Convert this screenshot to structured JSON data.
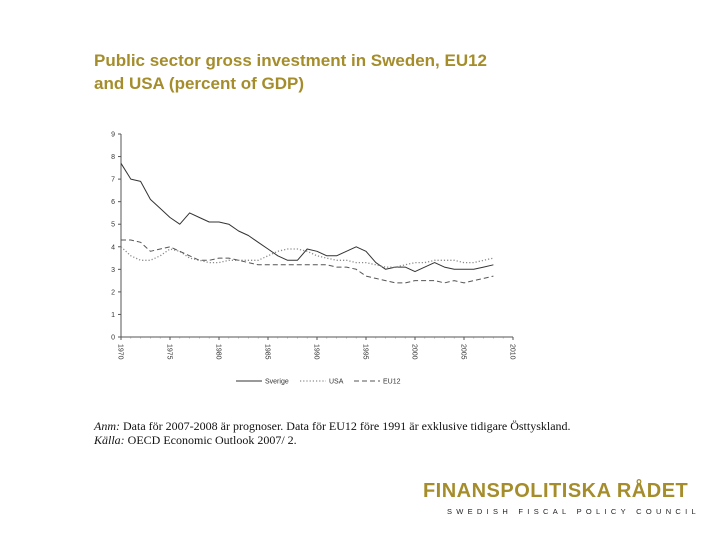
{
  "title": {
    "line1": "Public sector gross investment in Sweden, EU12",
    "line2": "and USA (percent of GDP)"
  },
  "chart_data": {
    "type": "line",
    "title": "Public sector gross investment in Sweden, EU12 and USA (percent of GDP)",
    "xlabel": "",
    "ylabel": "",
    "xlim": [
      1970,
      2010
    ],
    "ylim": [
      0,
      9
    ],
    "x_ticks": [
      "1970",
      "1975",
      "1980",
      "1985",
      "1990",
      "1995",
      "2000",
      "2005",
      "2010"
    ],
    "y_ticks": [
      "0",
      "1",
      "2",
      "3",
      "4",
      "5",
      "6",
      "7",
      "8",
      "9"
    ],
    "x": [
      1970,
      1971,
      1972,
      1973,
      1974,
      1975,
      1976,
      1977,
      1978,
      1979,
      1980,
      1981,
      1982,
      1983,
      1984,
      1985,
      1986,
      1987,
      1988,
      1989,
      1990,
      1991,
      1992,
      1993,
      1994,
      1995,
      1996,
      1997,
      1998,
      1999,
      2000,
      2001,
      2002,
      2003,
      2004,
      2005,
      2006,
      2007,
      2008
    ],
    "series": [
      {
        "name": "Sverige",
        "style": "solid",
        "color": "#333333",
        "values": [
          7.7,
          7.0,
          6.9,
          6.1,
          5.7,
          5.3,
          5.0,
          5.5,
          5.3,
          5.1,
          5.1,
          5.0,
          4.7,
          4.5,
          4.2,
          3.9,
          3.6,
          3.4,
          3.4,
          3.9,
          3.8,
          3.6,
          3.6,
          3.8,
          4.0,
          3.8,
          3.3,
          3.0,
          3.1,
          3.1,
          2.9,
          3.1,
          3.3,
          3.1,
          3.0,
          3.0,
          3.0,
          3.1,
          3.2
        ]
      },
      {
        "name": "USA",
        "style": "dotted",
        "color": "#8a8a8a",
        "values": [
          4.0,
          3.6,
          3.4,
          3.4,
          3.6,
          3.9,
          3.8,
          3.5,
          3.4,
          3.3,
          3.3,
          3.4,
          3.4,
          3.4,
          3.4,
          3.6,
          3.8,
          3.9,
          3.9,
          3.8,
          3.6,
          3.5,
          3.4,
          3.4,
          3.3,
          3.3,
          3.2,
          3.1,
          3.1,
          3.2,
          3.3,
          3.3,
          3.4,
          3.4,
          3.4,
          3.3,
          3.3,
          3.4,
          3.5
        ]
      },
      {
        "name": "EU12",
        "style": "dashed",
        "color": "#555555",
        "values": [
          4.3,
          4.3,
          4.2,
          3.8,
          3.9,
          4.0,
          3.8,
          3.6,
          3.4,
          3.4,
          3.5,
          3.5,
          3.4,
          3.3,
          3.2,
          3.2,
          3.2,
          3.2,
          3.2,
          3.2,
          3.2,
          3.2,
          3.1,
          3.1,
          3.0,
          2.7,
          2.6,
          2.5,
          2.4,
          2.4,
          2.5,
          2.5,
          2.5,
          2.4,
          2.5,
          2.4,
          2.5,
          2.6,
          2.7
        ]
      }
    ],
    "legend": [
      "Sverige",
      "USA",
      "EU12"
    ],
    "legend_position": "bottom",
    "grid": false
  },
  "note": {
    "anm_label": "Anm:",
    "anm_text": "Data för 2007-2008 är prognoser. Data för EU12 före 1991 är exklusive tidigare Östtyskland.",
    "source_label": "Källa:",
    "source_text": "OECD Economic Outlook 2007/ 2."
  },
  "brand": {
    "name": "FINANSPOLITISKA RÅDET",
    "tagline": "SWEDISH FISCAL POLICY COUNCIL"
  }
}
